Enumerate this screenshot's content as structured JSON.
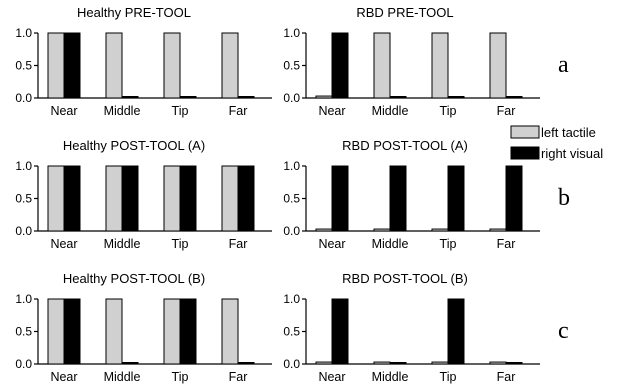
{
  "chart_data": [
    {
      "type": "bar",
      "title": "Healthy PRE-TOOL",
      "categories": [
        "Near",
        "Middle",
        "Tip",
        "Far"
      ],
      "ylim": [
        0,
        1.0
      ],
      "yticks": [
        "1.0",
        "0.5",
        "0.0"
      ],
      "series": [
        {
          "name": "left tactile",
          "values": [
            1.0,
            1.0,
            1.0,
            1.0
          ]
        },
        {
          "name": "right visual",
          "values": [
            1.0,
            0.02,
            0.02,
            0.02
          ]
        }
      ]
    },
    {
      "type": "bar",
      "title": "RBD PRE-TOOL",
      "categories": [
        "Near",
        "Middle",
        "Tip",
        "Far"
      ],
      "ylim": [
        0,
        1.0
      ],
      "yticks": [
        "1.0",
        "0.5",
        "0.0"
      ],
      "series": [
        {
          "name": "left tactile",
          "values": [
            0.03,
            1.0,
            1.0,
            1.0
          ]
        },
        {
          "name": "right visual",
          "values": [
            1.0,
            0.02,
            0.02,
            0.02
          ]
        }
      ]
    },
    {
      "type": "bar",
      "title": "Healthy POST-TOOL (A)",
      "categories": [
        "Near",
        "Middle",
        "Tip",
        "Far"
      ],
      "ylim": [
        0,
        1.0
      ],
      "yticks": [
        "1.0",
        "0.5",
        "0.0"
      ],
      "series": [
        {
          "name": "left tactile",
          "values": [
            1.0,
            1.0,
            1.0,
            1.0
          ]
        },
        {
          "name": "right visual",
          "values": [
            1.0,
            1.0,
            1.0,
            1.0
          ]
        }
      ]
    },
    {
      "type": "bar",
      "title": "RBD POST-TOOL (A)",
      "categories": [
        "Near",
        "Middle",
        "Tip",
        "Far"
      ],
      "ylim": [
        0,
        1.0
      ],
      "yticks": [
        "1.0",
        "0.5",
        "0.0"
      ],
      "series": [
        {
          "name": "left tactile",
          "values": [
            0.03,
            0.03,
            0.03,
            0.03
          ]
        },
        {
          "name": "right visual",
          "values": [
            1.0,
            1.0,
            1.0,
            1.0
          ]
        }
      ]
    },
    {
      "type": "bar",
      "title": "Healthy POST-TOOL (B)",
      "categories": [
        "Near",
        "Middle",
        "Tip",
        "Far"
      ],
      "ylim": [
        0,
        1.0
      ],
      "yticks": [
        "1.0",
        "0.5",
        "0.0"
      ],
      "series": [
        {
          "name": "left tactile",
          "values": [
            1.0,
            1.0,
            1.0,
            1.0
          ]
        },
        {
          "name": "right visual",
          "values": [
            1.0,
            0.02,
            1.0,
            0.02
          ]
        }
      ]
    },
    {
      "type": "bar",
      "title": "RBD POST-TOOL (B)",
      "categories": [
        "Near",
        "Middle",
        "Tip",
        "Far"
      ],
      "ylim": [
        0,
        1.0
      ],
      "yticks": [
        "1.0",
        "0.5",
        "0.0"
      ],
      "series": [
        {
          "name": "left tactile",
          "values": [
            0.03,
            0.03,
            0.03,
            0.03
          ]
        },
        {
          "name": "right visual",
          "values": [
            1.0,
            0.02,
            1.0,
            0.02
          ]
        }
      ]
    }
  ],
  "row_labels": [
    "a",
    "b",
    "c"
  ],
  "legend": {
    "items": [
      {
        "label": "left tactile",
        "color": "#d0d0d0"
      },
      {
        "label": "right visual",
        "color": "#000000"
      }
    ],
    "placement": "right"
  }
}
